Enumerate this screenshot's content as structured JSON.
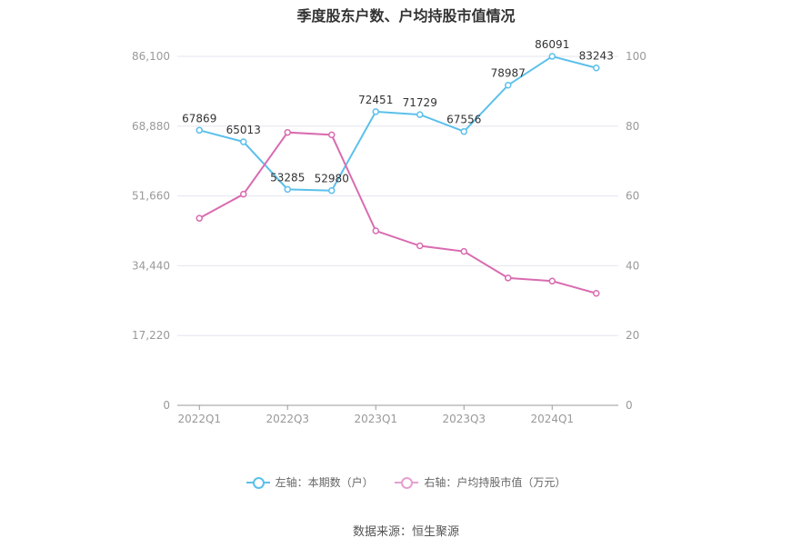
{
  "chart_data": {
    "type": "line",
    "title": "季度股东户数、户均持股市值情况",
    "categories": [
      "2022Q1",
      "2022Q2",
      "2022Q3",
      "2022Q4",
      "2023Q1",
      "2023Q2",
      "2023Q3",
      "2023Q4",
      "2024Q1",
      "2024Q2"
    ],
    "x_tick_labels": [
      "2022Q1",
      "2022Q3",
      "2023Q1",
      "2023Q3",
      "2024Q1"
    ],
    "left_axis": {
      "ylim": [
        0,
        86100
      ],
      "ticks": [
        "0",
        "17,220",
        "34,440",
        "51,660",
        "68,880",
        "86,100"
      ]
    },
    "right_axis": {
      "ylim": [
        0,
        100
      ],
      "ticks": [
        "0",
        "20",
        "40",
        "60",
        "80",
        "100"
      ]
    },
    "grid": true,
    "legend_position": "bottom",
    "series": [
      {
        "name": "左轴：本期数（户）",
        "axis": "left",
        "color": "#5bc0eb",
        "values": [
          67869,
          65013,
          53285,
          52980,
          72451,
          71729,
          67556,
          78987,
          86091,
          83243
        ],
        "labels": [
          "67869",
          "65013",
          "53285",
          "52980",
          "72451",
          "71729",
          "67556",
          "78987",
          "86091",
          "83243"
        ]
      },
      {
        "name": "右轴：户均持股市值（万元）",
        "axis": "right",
        "color": "#d96bb0",
        "values": [
          53.6,
          60.5,
          78.2,
          77.5,
          50.0,
          45.7,
          44.1,
          36.5,
          35.6,
          32.1
        ]
      }
    ]
  },
  "source": "数据来源：恒生聚源"
}
